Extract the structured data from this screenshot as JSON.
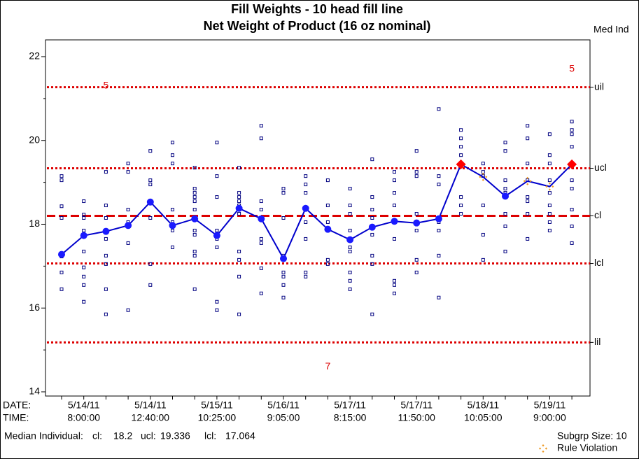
{
  "chart_data": {
    "type": "control",
    "title": "Fill Weights - 10 head fill line",
    "subtitle": "Net Weight of Product (16 oz nominal)",
    "right_axis_label": "Med Ind",
    "date_label": "DATE:",
    "time_label": "TIME:",
    "dates": [
      null,
      "5/14/11",
      null,
      null,
      "5/14/11",
      null,
      null,
      "5/15/11",
      null,
      null,
      "5/16/11",
      null,
      null,
      "5/17/11",
      null,
      null,
      "5/17/11",
      null,
      null,
      "5/18/11",
      null,
      null,
      "5/19/11",
      null
    ],
    "times": [
      null,
      "8:00:00",
      null,
      null,
      "12:40:00",
      null,
      null,
      "10:25:00",
      null,
      null,
      "9:05:00",
      null,
      null,
      "8:15:00",
      null,
      null,
      "11:50:00",
      null,
      null,
      "10:05:00",
      null,
      null,
      "9:00:00",
      null
    ],
    "ylim": [
      13.9,
      22.4
    ],
    "yticks": [
      14,
      16,
      18,
      20,
      22
    ],
    "minor_yticks": [
      15,
      17,
      19,
      21
    ],
    "line_color": "#0000cc",
    "point_color": "#1a1aff",
    "individual_color": "#000080",
    "limit_color": "#dd0000",
    "median_series": {
      "name": "Median Individual",
      "values": [
        17.28,
        17.73,
        17.83,
        17.97,
        18.53,
        17.97,
        18.13,
        17.73,
        18.38,
        18.13,
        17.18,
        18.38,
        17.88,
        17.63,
        17.93,
        18.07,
        18.03,
        18.13,
        19.43,
        19.13,
        18.67,
        19.03,
        18.9,
        19.43
      ],
      "markers": [
        "circle",
        "circle",
        "circle",
        "circle",
        "circle",
        "circle",
        "circle",
        "circle",
        "circle",
        "circle",
        "circle",
        "circle",
        "circle",
        "circle",
        "circle",
        "circle",
        "circle",
        "circle",
        "beyond",
        "rule",
        "circle",
        "rule",
        "rule",
        "beyond"
      ]
    },
    "beyond_color": "#ff0000",
    "rule_color": "#ee9922",
    "individuals": [
      [
        19.15,
        19.05,
        18.43,
        18.15,
        17.28,
        17.23,
        16.85,
        16.45
      ],
      [
        18.55,
        18.23,
        18.15,
        17.85,
        17.35,
        16.97,
        16.75,
        16.55,
        16.15
      ],
      [
        19.25,
        18.45,
        18.15,
        17.65,
        17.25,
        17.05,
        16.45,
        15.85
      ],
      [
        19.45,
        19.25,
        18.35,
        18.05,
        17.55,
        15.95
      ],
      [
        19.75,
        19.05,
        18.95,
        18.15,
        17.05,
        16.55
      ],
      [
        19.95,
        19.65,
        19.45,
        18.35,
        18.05,
        17.85,
        17.45
      ],
      [
        19.35,
        18.85,
        18.75,
        18.65,
        18.55,
        18.35,
        17.85,
        17.75,
        17.35,
        17.25,
        16.45
      ],
      [
        19.95,
        19.15,
        18.65,
        17.85,
        17.65,
        17.45,
        16.15,
        15.95
      ],
      [
        19.35,
        18.75,
        18.65,
        18.55,
        18.45,
        18.25,
        17.35,
        17.15,
        16.75,
        15.85
      ],
      [
        20.35,
        20.05,
        18.55,
        18.35,
        18.15,
        17.65,
        17.55,
        16.95,
        16.35
      ],
      [
        18.85,
        18.75,
        18.15,
        17.25,
        17.15,
        16.85,
        16.75,
        16.55,
        16.25
      ],
      [
        19.15,
        18.95,
        18.75,
        18.35,
        18.05,
        17.65,
        16.85,
        16.75
      ],
      [
        19.05,
        18.45,
        18.05,
        17.85,
        17.15,
        17.05
      ],
      [
        18.85,
        18.45,
        18.25,
        17.85,
        17.45,
        17.35,
        16.85,
        16.65,
        16.45
      ],
      [
        19.55,
        18.65,
        18.35,
        18.15,
        17.75,
        17.25,
        17.05,
        15.85
      ],
      [
        19.25,
        19.05,
        18.75,
        18.45,
        18.05,
        17.65,
        16.65,
        16.55,
        16.35
      ],
      [
        19.75,
        19.25,
        19.15,
        18.25,
        18.05,
        17.85,
        17.15,
        16.85
      ],
      [
        20.75,
        19.15,
        18.95,
        18.05,
        17.85,
        17.25,
        16.25
      ],
      [
        20.25,
        20.05,
        19.85,
        19.65,
        19.45,
        18.65,
        18.45,
        18.25
      ],
      [
        19.45,
        19.25,
        19.15,
        18.45,
        17.75,
        17.15
      ],
      [
        19.95,
        19.75,
        19.05,
        18.85,
        18.75,
        18.65,
        18.25,
        17.95,
        17.35
      ],
      [
        20.35,
        20.05,
        19.45,
        19.05,
        18.65,
        18.55,
        18.25,
        17.65
      ],
      [
        20.15,
        19.65,
        19.45,
        19.05,
        18.75,
        18.45,
        18.25,
        18.05,
        17.85
      ],
      [
        20.45,
        20.25,
        20.15,
        19.85,
        19.05,
        18.85,
        18.35,
        17.95,
        17.55
      ]
    ],
    "limits": [
      {
        "name": "uil",
        "value": 21.27,
        "style": "dotted"
      },
      {
        "name": "ucl",
        "value": 19.336,
        "style": "dotted"
      },
      {
        "name": "cl",
        "value": 18.2,
        "style": "dashed"
      },
      {
        "name": "lcl",
        "value": 17.064,
        "style": "dotted"
      },
      {
        "name": "lil",
        "value": 15.18,
        "style": "dotted"
      }
    ],
    "annotations": [
      {
        "text": "5",
        "index": 2,
        "y": 21.3
      },
      {
        "text": "5",
        "index": 23,
        "y": 21.7
      },
      {
        "text": "7",
        "index": 12,
        "y": 14.6
      }
    ],
    "footer_label": "Median Individual:",
    "cl_label": "cl:",
    "ucl_label": "ucl:",
    "lcl_label": "lcl:",
    "subgroup_size": "Subgrp Size: 10",
    "rule_violation_label": "Rule Violation"
  }
}
